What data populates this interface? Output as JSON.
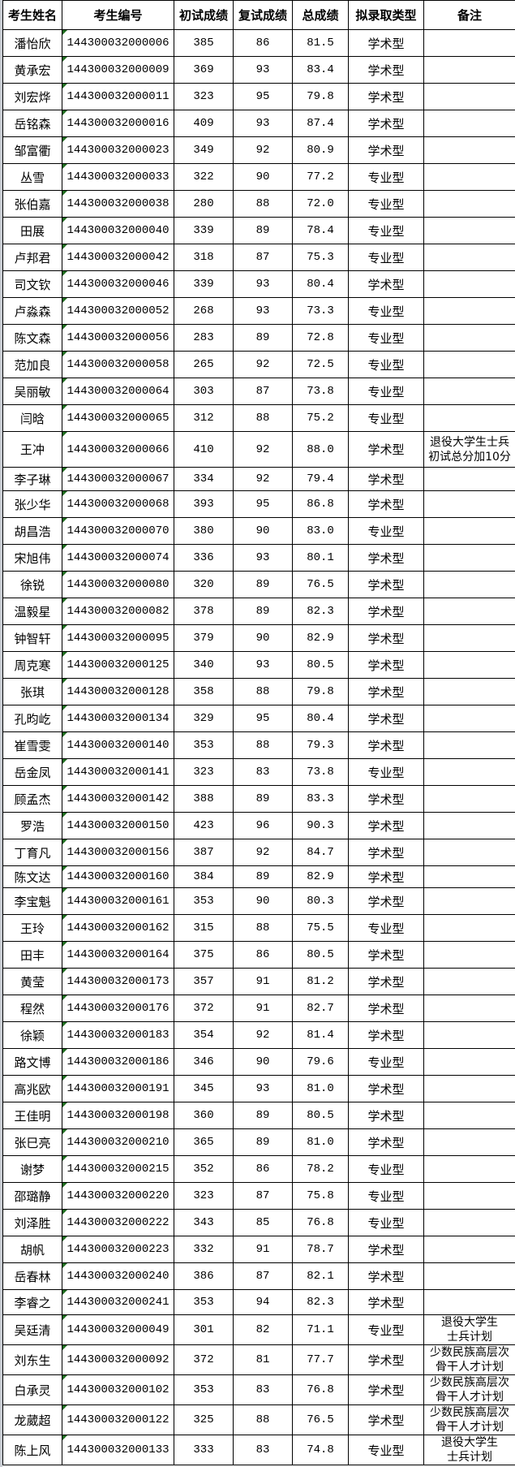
{
  "headers": [
    "考生姓名",
    "考生编号",
    "初试成绩",
    "复试成绩",
    "总成绩",
    "拟录取类型",
    "备注"
  ],
  "rows": [
    [
      "潘怡欣",
      "144300032000006",
      "385",
      "86",
      "81.5",
      "学术型",
      ""
    ],
    [
      "黄承宏",
      "144300032000009",
      "369",
      "93",
      "83.4",
      "学术型",
      ""
    ],
    [
      "刘宏烨",
      "144300032000011",
      "323",
      "95",
      "79.8",
      "学术型",
      ""
    ],
    [
      "岳铭森",
      "144300032000016",
      "409",
      "93",
      "87.4",
      "学术型",
      ""
    ],
    [
      "邹富衢",
      "144300032000023",
      "349",
      "92",
      "80.9",
      "学术型",
      ""
    ],
    [
      "丛雪",
      "144300032000033",
      "322",
      "90",
      "77.2",
      "专业型",
      ""
    ],
    [
      "张伯嘉",
      "144300032000038",
      "280",
      "88",
      "72.0",
      "专业型",
      ""
    ],
    [
      "田展",
      "144300032000040",
      "339",
      "89",
      "78.4",
      "专业型",
      ""
    ],
    [
      "卢邦君",
      "144300032000042",
      "318",
      "87",
      "75.3",
      "专业型",
      ""
    ],
    [
      "司文钦",
      "144300032000046",
      "339",
      "93",
      "80.4",
      "学术型",
      ""
    ],
    [
      "卢淼森",
      "144300032000052",
      "268",
      "93",
      "73.3",
      "专业型",
      ""
    ],
    [
      "陈文森",
      "144300032000056",
      "283",
      "89",
      "72.8",
      "专业型",
      ""
    ],
    [
      "范加良",
      "144300032000058",
      "265",
      "92",
      "72.5",
      "专业型",
      ""
    ],
    [
      "吴丽敏",
      "144300032000064",
      "303",
      "87",
      "73.8",
      "专业型",
      ""
    ],
    [
      "闫晗",
      "144300032000065",
      "312",
      "88",
      "75.2",
      "专业型",
      ""
    ],
    [
      "王冲",
      "144300032000066",
      "410",
      "92",
      "88.0",
      "学术型",
      "退役大学生士兵\n初试总分加10分"
    ],
    [
      "李子琳",
      "144300032000067",
      "334",
      "92",
      "79.4",
      "学术型",
      ""
    ],
    [
      "张少华",
      "144300032000068",
      "393",
      "95",
      "86.8",
      "学术型",
      ""
    ],
    [
      "胡昌浩",
      "144300032000070",
      "380",
      "90",
      "83.0",
      "专业型",
      ""
    ],
    [
      "宋旭伟",
      "144300032000074",
      "336",
      "93",
      "80.1",
      "学术型",
      ""
    ],
    [
      "徐锐",
      "144300032000080",
      "320",
      "89",
      "76.5",
      "学术型",
      ""
    ],
    [
      "温毅星",
      "144300032000082",
      "378",
      "89",
      "82.3",
      "学术型",
      ""
    ],
    [
      "钟智轩",
      "144300032000095",
      "379",
      "90",
      "82.9",
      "学术型",
      ""
    ],
    [
      "周克寒",
      "144300032000125",
      "340",
      "93",
      "80.5",
      "学术型",
      ""
    ],
    [
      "张琪",
      "144300032000128",
      "358",
      "88",
      "79.8",
      "学术型",
      ""
    ],
    [
      "孔昀屹",
      "144300032000134",
      "329",
      "95",
      "80.4",
      "学术型",
      ""
    ],
    [
      "崔雪雯",
      "144300032000140",
      "353",
      "88",
      "79.3",
      "学术型",
      ""
    ],
    [
      "岳金凤",
      "144300032000141",
      "323",
      "83",
      "73.8",
      "专业型",
      ""
    ],
    [
      "顾孟杰",
      "144300032000142",
      "388",
      "89",
      "83.3",
      "学术型",
      ""
    ],
    [
      "罗浩",
      "144300032000150",
      "423",
      "96",
      "90.3",
      "学术型",
      ""
    ],
    [
      "丁育凡",
      "144300032000156",
      "387",
      "92",
      "84.7",
      "学术型",
      ""
    ],
    [
      "陈文达",
      "144300032000160",
      "384",
      "89",
      "82.9",
      "学术型",
      ""
    ],
    [
      "李宝魁",
      "144300032000161",
      "353",
      "90",
      "80.3",
      "学术型",
      ""
    ],
    [
      "王玲",
      "144300032000162",
      "315",
      "88",
      "75.5",
      "专业型",
      ""
    ],
    [
      "田丰",
      "144300032000164",
      "375",
      "86",
      "80.5",
      "学术型",
      ""
    ],
    [
      "黄莹",
      "144300032000173",
      "357",
      "91",
      "81.2",
      "学术型",
      ""
    ],
    [
      "程然",
      "144300032000176",
      "372",
      "91",
      "82.7",
      "学术型",
      ""
    ],
    [
      "徐颖",
      "144300032000183",
      "354",
      "92",
      "81.4",
      "学术型",
      ""
    ],
    [
      "路文博",
      "144300032000186",
      "346",
      "90",
      "79.6",
      "专业型",
      ""
    ],
    [
      "高兆欧",
      "144300032000191",
      "345",
      "93",
      "81.0",
      "学术型",
      ""
    ],
    [
      "王佳明",
      "144300032000198",
      "360",
      "89",
      "80.5",
      "学术型",
      ""
    ],
    [
      "张巳亮",
      "144300032000210",
      "365",
      "89",
      "81.0",
      "学术型",
      ""
    ],
    [
      "谢梦",
      "144300032000215",
      "352",
      "86",
      "78.2",
      "专业型",
      ""
    ],
    [
      "邵璐静",
      "144300032000220",
      "323",
      "87",
      "75.8",
      "专业型",
      ""
    ],
    [
      "刘泽胜",
      "144300032000222",
      "343",
      "85",
      "76.8",
      "专业型",
      ""
    ],
    [
      "胡帆",
      "144300032000223",
      "332",
      "91",
      "78.7",
      "学术型",
      ""
    ],
    [
      "岳春林",
      "144300032000240",
      "386",
      "87",
      "82.1",
      "学术型",
      ""
    ],
    [
      "李睿之",
      "144300032000241",
      "353",
      "94",
      "82.3",
      "学术型",
      ""
    ],
    [
      "吴廷清",
      "144300032000049",
      "301",
      "82",
      "71.1",
      "专业型",
      "退役大学生\n士兵计划"
    ],
    [
      "刘东生",
      "144300032000092",
      "372",
      "81",
      "77.7",
      "学术型",
      "少数民族高层次\n骨干人才计划"
    ],
    [
      "白承灵",
      "144300032000102",
      "353",
      "83",
      "76.8",
      "学术型",
      "少数民族高层次\n骨干人才计划"
    ],
    [
      "龙葳超",
      "144300032000122",
      "325",
      "88",
      "76.5",
      "学术型",
      "少数民族高层次\n骨干人才计划"
    ],
    [
      "陈上风",
      "144300032000133",
      "333",
      "83",
      "74.8",
      "专业型",
      "退役大学生\n士兵计划"
    ]
  ]
}
